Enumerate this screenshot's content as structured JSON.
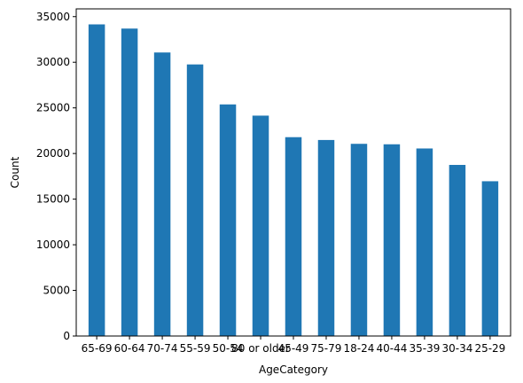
{
  "chart_data": {
    "type": "bar",
    "title": "",
    "xlabel": "AgeCategory",
    "ylabel": "Count",
    "categories": [
      "65-69",
      "60-64",
      "70-74",
      "55-59",
      "50-54",
      "80 or older",
      "45-49",
      "75-79",
      "18-24",
      "40-44",
      "35-39",
      "30-34",
      "25-29"
    ],
    "values": [
      34150,
      33690,
      31070,
      29760,
      25380,
      24150,
      21790,
      21480,
      21060,
      21010,
      20550,
      18750,
      16960
    ],
    "ylim": [
      0,
      35850
    ],
    "yticks": [
      0,
      5000,
      10000,
      15000,
      20000,
      25000,
      30000,
      35000
    ],
    "grid": false,
    "legend": "none",
    "bar_color": "#1f77b4"
  }
}
